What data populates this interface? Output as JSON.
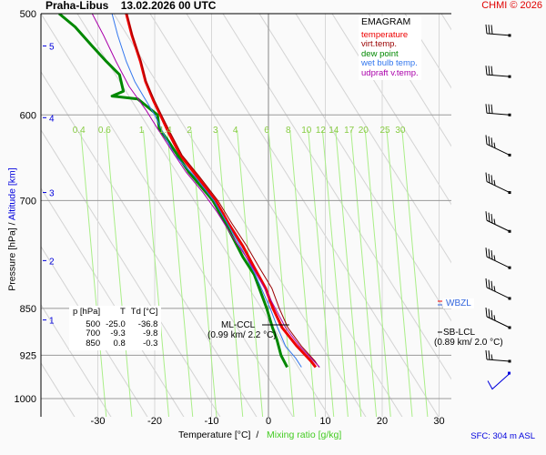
{
  "header": {
    "station": "Praha-Libus",
    "datetime": "13.02.2026 00 UTC",
    "copyright": "CHMI © 2026"
  },
  "legend": {
    "title": "EMAGRAM",
    "items": [
      {
        "label": "temperature",
        "color": "#ee0000"
      },
      {
        "label": "virt.temp.",
        "color": "#990000"
      },
      {
        "label": "dew point",
        "color": "#008800"
      },
      {
        "label": "wet bulb temp.",
        "color": "#3377ee"
      },
      {
        "label": "udpraft v.temp.",
        "color": "#aa00aa"
      }
    ]
  },
  "summary_table": {
    "headers": [
      "p [hPa]",
      "T",
      "Td [°C]"
    ],
    "rows": [
      [
        "500",
        "-25.0",
        "-36.8"
      ],
      [
        "700",
        "-9.3",
        "-9.8"
      ],
      [
        "850",
        "0.8",
        "-0.3"
      ]
    ]
  },
  "annotations": {
    "ml_ccl": {
      "label": "ML-CCL",
      "detail": "(0.99 km/ 2.2 °C)"
    },
    "sb_lcl": {
      "label": "SB-LCL",
      "detail": "(0.89 km/ 2.0 °C)"
    },
    "wbzl": "WBZL",
    "sfc": "SFC: 304 m ASL"
  },
  "chart_data": {
    "type": "line",
    "title": "Praha-Libus 13.02.2026 00 UTC — EMAGRAM",
    "xlabel": "Temperature [°C]",
    "xlabel_secondary": "Mixing ratio [g/kg]",
    "ylabel": "Pressure [hPa]",
    "ylabel_secondary": "Altitude [km]",
    "xlim": [
      -37,
      33
    ],
    "ylim": [
      1000,
      500
    ],
    "x_ticks": [
      -30,
      -20,
      -10,
      0,
      10,
      20,
      30
    ],
    "y_ticks": [
      500,
      600,
      700,
      850,
      925,
      1000
    ],
    "altitude_ticks_km": [
      {
        "km": "1",
        "p": 868
      },
      {
        "km": "2",
        "p": 780
      },
      {
        "km": "3",
        "p": 690
      },
      {
        "km": "4",
        "p": 603
      },
      {
        "km": "5",
        "p": 530
      }
    ],
    "mixing_ratio_labels": [
      "0.4",
      "0.6",
      "1",
      "1.4",
      "2",
      "3",
      "4",
      "6",
      "8",
      "10",
      "12",
      "14",
      "17",
      "20",
      "25",
      "30"
    ],
    "mixing_ratio_label_temps": [
      -33,
      -28.5,
      -22,
      -17.8,
      -13.6,
      -9,
      -5.5,
      0,
      3.8,
      7,
      9.5,
      11.8,
      14.5,
      17,
      20.8,
      23.5
    ],
    "grid": true,
    "legend_position": "top-right",
    "series": [
      {
        "name": "temperature",
        "color": "#ee0000",
        "width": 3,
        "points": [
          [
            -25.0,
            500
          ],
          [
            -24.0,
            520
          ],
          [
            -22.5,
            545
          ],
          [
            -21.6,
            565
          ],
          [
            -20.2,
            585
          ],
          [
            -19.0,
            600
          ],
          [
            -17.5,
            620
          ],
          [
            -15.5,
            645
          ],
          [
            -12.6,
            670
          ],
          [
            -9.3,
            700
          ],
          [
            -7.0,
            730
          ],
          [
            -4.5,
            760
          ],
          [
            -2.5,
            790
          ],
          [
            -0.5,
            820
          ],
          [
            0.8,
            850
          ],
          [
            2.4,
            880
          ],
          [
            5.0,
            910
          ],
          [
            7.5,
            935
          ],
          [
            8.3,
            945
          ]
        ]
      },
      {
        "name": "virt.temp.",
        "color": "#990000",
        "width": 1,
        "points": [
          [
            -24.9,
            500
          ],
          [
            -23.9,
            520
          ],
          [
            -22.4,
            545
          ],
          [
            -21.5,
            565
          ],
          [
            -20.0,
            585
          ],
          [
            -18.8,
            600
          ],
          [
            -17.2,
            620
          ],
          [
            -15.2,
            645
          ],
          [
            -12.2,
            670
          ],
          [
            -8.9,
            700
          ],
          [
            -6.4,
            730
          ],
          [
            -3.8,
            760
          ],
          [
            -1.6,
            790
          ],
          [
            0.6,
            820
          ],
          [
            1.9,
            850
          ],
          [
            3.4,
            880
          ],
          [
            5.8,
            910
          ],
          [
            8.2,
            935
          ],
          [
            8.9,
            945
          ]
        ]
      },
      {
        "name": "dew point",
        "color": "#008800",
        "width": 3,
        "points": [
          [
            -36.8,
            500
          ],
          [
            -34.0,
            512
          ],
          [
            -31.0,
            530
          ],
          [
            -28.5,
            545
          ],
          [
            -26.2,
            558
          ],
          [
            -25.5,
            575
          ],
          [
            -27.5,
            580
          ],
          [
            -23.0,
            583
          ],
          [
            -19.5,
            600
          ],
          [
            -19.2,
            615
          ],
          [
            -17.5,
            630
          ],
          [
            -16.0,
            645
          ],
          [
            -14.0,
            665
          ],
          [
            -9.8,
            700
          ],
          [
            -7.5,
            730
          ],
          [
            -4.5,
            775
          ],
          [
            -2.5,
            800
          ],
          [
            -0.3,
            850
          ],
          [
            0.7,
            880
          ],
          [
            1.5,
            900
          ],
          [
            2.2,
            925
          ],
          [
            3.3,
            945
          ]
        ]
      },
      {
        "name": "wet bulb temp.",
        "color": "#3377ee",
        "width": 1,
        "points": [
          [
            -27.5,
            500
          ],
          [
            -26.5,
            520
          ],
          [
            -25.0,
            545
          ],
          [
            -23.5,
            565
          ],
          [
            -22.0,
            580
          ],
          [
            -20.0,
            600
          ],
          [
            -18.5,
            620
          ],
          [
            -16.5,
            645
          ],
          [
            -13.0,
            670
          ],
          [
            -9.6,
            700
          ],
          [
            -7.2,
            730
          ],
          [
            -4.6,
            765
          ],
          [
            -2.3,
            800
          ],
          [
            0.3,
            850
          ],
          [
            1.6,
            880
          ],
          [
            3.0,
            910
          ],
          [
            4.8,
            930
          ],
          [
            5.8,
            945
          ]
        ]
      },
      {
        "name": "udpraft v.temp.",
        "color": "#aa00aa",
        "width": 1,
        "points": [
          [
            -31.0,
            500
          ],
          [
            -29.0,
            520
          ],
          [
            -26.8,
            545
          ],
          [
            -24.5,
            570
          ],
          [
            -21.5,
            595
          ],
          [
            -19.5,
            615
          ],
          [
            -17.0,
            640
          ],
          [
            -14.5,
            665
          ],
          [
            -11.5,
            690
          ],
          [
            -9.0,
            715
          ],
          [
            -6.5,
            745
          ],
          [
            -3.5,
            780
          ],
          [
            -1.0,
            815
          ],
          [
            1.2,
            850
          ],
          [
            3.0,
            880
          ],
          [
            5.5,
            910
          ],
          [
            8.0,
            935
          ],
          [
            9.0,
            945
          ]
        ]
      }
    ],
    "wind_barbs": [
      {
        "p": 520,
        "knots": 30
      },
      {
        "p": 560,
        "knots": 30
      },
      {
        "p": 600,
        "knots": 30
      },
      {
        "p": 645,
        "knots": 25
      },
      {
        "p": 690,
        "knots": 25
      },
      {
        "p": 740,
        "knots": 25
      },
      {
        "p": 790,
        "knots": 25
      },
      {
        "p": 835,
        "knots": 25
      },
      {
        "p": 880,
        "knots": 25
      },
      {
        "p": 935,
        "knots": 15
      },
      {
        "p": 975,
        "knots": 5
      }
    ]
  }
}
